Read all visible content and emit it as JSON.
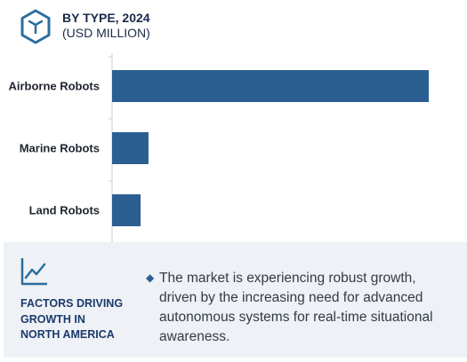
{
  "header": {
    "title": "BY TYPE, 2024",
    "subtitle": "(USD MILLION)",
    "icon": "hexagon-cube-icon"
  },
  "colors": {
    "bar": "#2b5e91",
    "accent": "#2b6f9e",
    "panel_bg": "#eef1f5",
    "axis": "#cccccc"
  },
  "chart_data": {
    "type": "bar",
    "orientation": "horizontal",
    "title": "BY TYPE, 2024",
    "subtitle": "(USD MILLION)",
    "categories": [
      "Airborne Robots",
      "Marine Robots",
      "Land Robots"
    ],
    "values": [
      100,
      11.5,
      9
    ],
    "xlim": [
      0,
      110
    ],
    "grid": false,
    "legend": "none"
  },
  "factors": {
    "icon": "line-chart-icon",
    "title_lines": [
      "FACTORS DRIVING",
      "GROWTH IN",
      "NORTH AMERICA"
    ],
    "bullet": "◆",
    "text_lines": [
      "The market is experiencing robust growth,",
      "driven by the increasing need for advanced",
      "autonomous systems for real-time situational",
      "awareness."
    ]
  }
}
